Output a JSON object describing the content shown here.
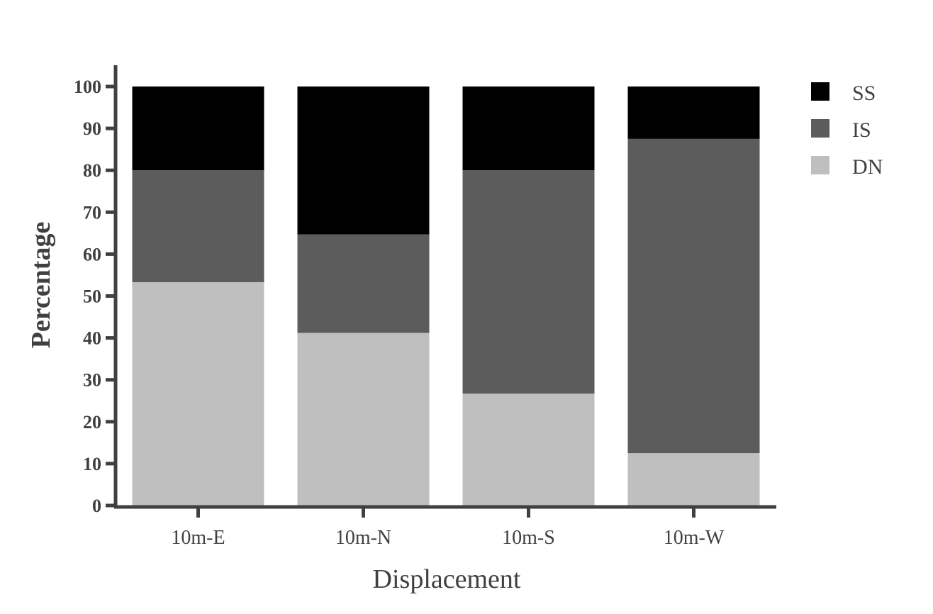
{
  "chart_data": {
    "type": "bar",
    "stacked": true,
    "categories": [
      "10m-E",
      "10m-N",
      "10m-S",
      "10m-W"
    ],
    "series": [
      {
        "name": "DN",
        "color": "#bfbfbf",
        "values": [
          53.3,
          41.2,
          26.7,
          12.5
        ]
      },
      {
        "name": "IS",
        "color": "#5c5c5c",
        "values": [
          26.7,
          23.5,
          53.3,
          75.0
        ]
      },
      {
        "name": "SS",
        "color": "#000000",
        "values": [
          20.0,
          35.3,
          20.0,
          12.5
        ]
      }
    ],
    "legend_order": [
      "SS",
      "IS",
      "DN"
    ],
    "legend_position": "top-right",
    "title": "",
    "xlabel": "Displacement",
    "ylabel": "Percentage",
    "ylim": [
      0,
      100
    ],
    "yticks": [
      "0",
      "10",
      "20",
      "30",
      "40",
      "50",
      "60",
      "70",
      "80",
      "90",
      "100"
    ],
    "grid": false,
    "axis_color": "#404040"
  }
}
